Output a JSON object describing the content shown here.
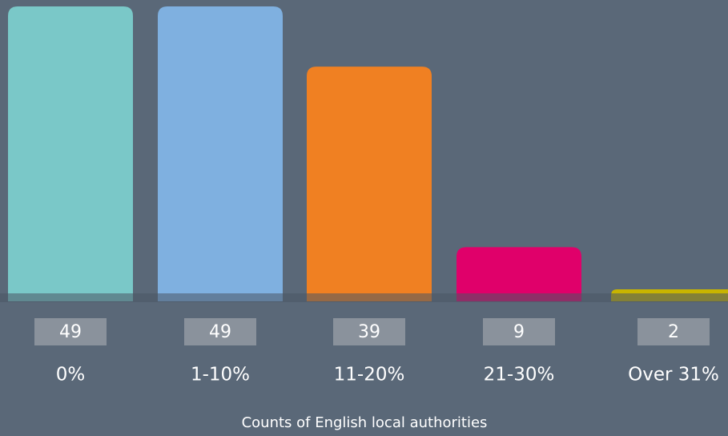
{
  "chart_data": {
    "type": "bar",
    "categories": [
      "0%",
      "1-10%",
      "11-20%",
      "21-30%",
      "Over 31%"
    ],
    "values": [
      49,
      49,
      39,
      9,
      2
    ],
    "colors": [
      "#7ac8c8",
      "#7fb0e0",
      "#f08022",
      "#e0006a",
      "#c8b400"
    ],
    "x_label": "Counts of English local authorities"
  }
}
